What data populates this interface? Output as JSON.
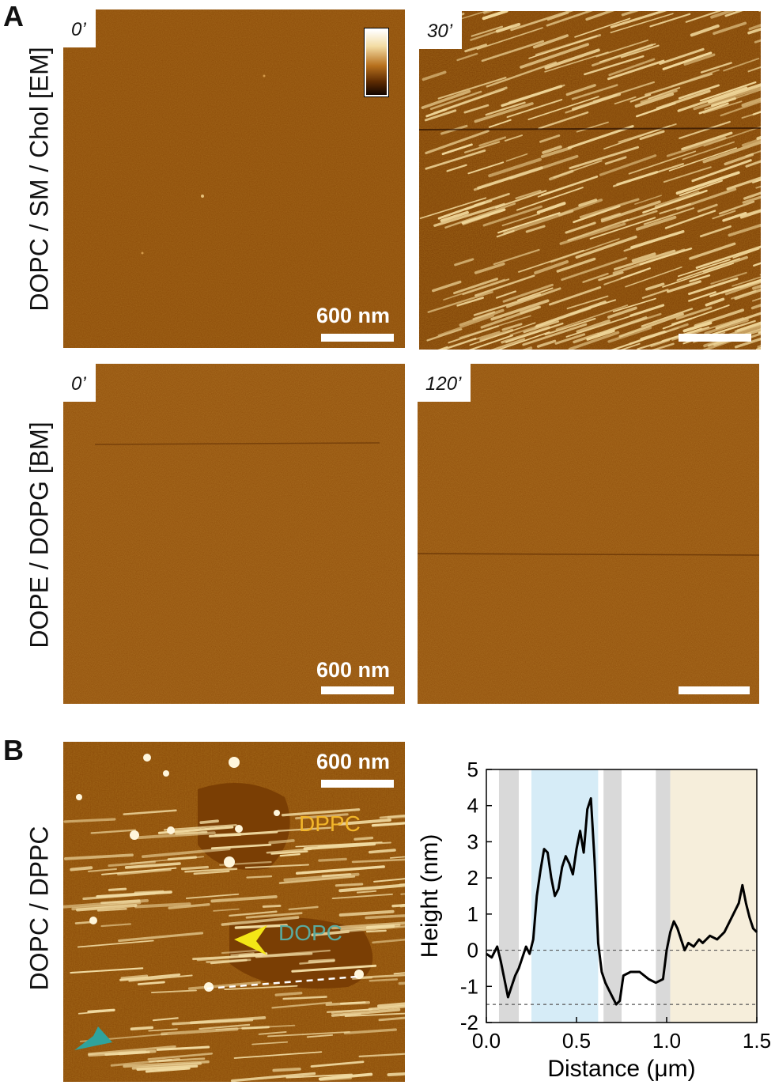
{
  "panels": {
    "A": {
      "letter": "A",
      "rows": [
        {
          "label": "DOPC / SM / Chol [EM]",
          "images": [
            {
              "time": "0’",
              "scale_text": "600 nm"
            },
            {
              "time": "30’",
              "scale_text": ""
            }
          ]
        },
        {
          "label": "DOPE / DOPG [BM]",
          "images": [
            {
              "time": "0’",
              "scale_text": "600 nm"
            },
            {
              "time": "120’",
              "scale_text": ""
            }
          ]
        }
      ]
    },
    "B": {
      "letter": "B",
      "row_label": "DOPC / DPPC",
      "scale_text": "600 nm",
      "dppc_label": "DPPC",
      "dopc_label": "DOPC"
    }
  },
  "colors": {
    "afm_base": "#8a4a06",
    "afm_bright": "#f3e0ad",
    "dppc_text": "#f2b62a",
    "dopc_text": "#5aaa9e",
    "yellow_arrow": "#f4e616",
    "teal_arrow": "#2fa39c",
    "gray_band": "#d9d9d9",
    "blue_band": "#d6ecf7",
    "beige_band": "#f6eedb"
  },
  "chart_data": {
    "type": "line",
    "xlabel": "Distance (μm)",
    "ylabel": "Height (nm)",
    "xlim": [
      0.0,
      1.5
    ],
    "ylim": [
      -2,
      5
    ],
    "xticks": [
      "0.0",
      "0.5",
      "1.0",
      "1.5"
    ],
    "yticks": [
      "-2",
      "-1",
      "0",
      "1",
      "2",
      "3",
      "4",
      "5"
    ],
    "reference_lines": [
      0,
      -1.5
    ],
    "bands": [
      {
        "x0": 0.07,
        "x1": 0.18,
        "kind": "gray"
      },
      {
        "x0": 0.25,
        "x1": 0.62,
        "kind": "blue"
      },
      {
        "x0": 0.65,
        "x1": 0.75,
        "kind": "gray"
      },
      {
        "x0": 0.94,
        "x1": 1.02,
        "kind": "gray"
      },
      {
        "x0": 1.02,
        "x1": 1.5,
        "kind": "beige"
      }
    ],
    "series": [
      {
        "x": [
          0.0,
          0.03,
          0.06,
          0.08,
          0.1,
          0.12,
          0.14,
          0.16,
          0.18,
          0.2,
          0.22,
          0.24,
          0.26,
          0.28,
          0.3,
          0.32,
          0.34,
          0.36,
          0.38,
          0.4,
          0.42,
          0.44,
          0.46,
          0.48,
          0.5,
          0.52,
          0.54,
          0.56,
          0.58,
          0.6,
          0.62,
          0.64,
          0.66,
          0.68,
          0.7,
          0.72,
          0.74,
          0.76,
          0.8,
          0.85,
          0.9,
          0.94,
          0.98,
          1.0,
          1.02,
          1.04,
          1.06,
          1.08,
          1.1,
          1.12,
          1.15,
          1.18,
          1.2,
          1.24,
          1.28,
          1.32,
          1.36,
          1.4,
          1.42,
          1.44,
          1.46,
          1.48,
          1.5
        ],
        "y": [
          -0.1,
          -0.2,
          0.1,
          -0.3,
          -0.8,
          -1.3,
          -1.0,
          -0.7,
          -0.5,
          -0.2,
          0.1,
          -0.1,
          0.3,
          1.5,
          2.2,
          2.8,
          2.7,
          2.0,
          1.5,
          1.7,
          2.3,
          2.6,
          2.4,
          2.1,
          2.8,
          3.3,
          2.7,
          3.9,
          4.2,
          2.5,
          0.2,
          -0.6,
          -0.9,
          -1.1,
          -1.3,
          -1.5,
          -1.4,
          -0.7,
          -0.6,
          -0.6,
          -0.8,
          -0.9,
          -0.8,
          0.0,
          0.5,
          0.8,
          0.6,
          0.3,
          0.0,
          0.2,
          0.1,
          0.3,
          0.2,
          0.4,
          0.3,
          0.5,
          0.9,
          1.3,
          1.8,
          1.3,
          0.9,
          0.6,
          0.5
        ]
      }
    ]
  }
}
